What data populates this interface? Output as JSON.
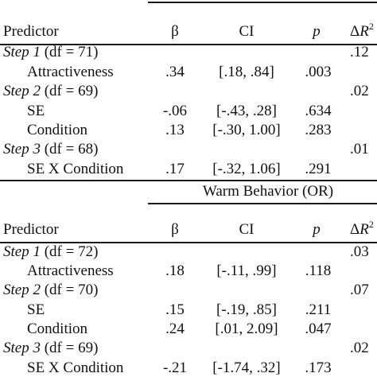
{
  "headers": {
    "predictor": "Predictor",
    "beta": "β",
    "ci": "CI",
    "p": "p",
    "delta": "Δ",
    "r": "R",
    "sup": "2"
  },
  "panel2_title": "Warm Behavior  (OR)",
  "panel1": {
    "step1": {
      "prefix": "Step 1",
      "df": " (df = 71)",
      "dr2": ".12"
    },
    "step1_rows": [
      {
        "label": "Attractiveness",
        "beta": ".34",
        "ci": "[.18, .84]",
        "p": ".003"
      }
    ],
    "step2": {
      "prefix": "Step 2",
      "df": " (df = 69)",
      "dr2": ".02"
    },
    "step2_rows": [
      {
        "label": "SE",
        "beta": "-.06",
        "ci": "[-.43, .28]",
        "p": ".634"
      },
      {
        "label": "Condition",
        "beta": ".13",
        "ci": "[-.30, 1.00]",
        "p": ".283"
      }
    ],
    "step3": {
      "prefix": "Step 3",
      "df": " (df = 68)",
      "dr2": ".01"
    },
    "step3_rows": [
      {
        "label": "SE X Condition",
        "beta": ".17",
        "ci": "[-.32, 1.06]",
        "p": ".291"
      }
    ]
  },
  "panel2": {
    "step1": {
      "prefix": "Step 1",
      "df": " (df = 72)",
      "dr2": ".03"
    },
    "step1_rows": [
      {
        "label": "Attractiveness",
        "beta": ".18",
        "ci": "[-.11, .99]",
        "p": ".118"
      }
    ],
    "step2": {
      "prefix": "Step 2",
      "df": " (df = 70)",
      "dr2": ".07"
    },
    "step2_rows": [
      {
        "label": "SE",
        "beta": ".15",
        "ci": "[-.19, .85]",
        "p": ".211"
      },
      {
        "label": "Condition",
        "beta": ".24",
        "ci": "[.01, 2.09]",
        "p": ".047"
      }
    ],
    "step3": {
      "prefix": "Step 3",
      "df": " (df = 69)",
      "dr2": ".02"
    },
    "step3_rows": [
      {
        "label": "SE X Condition",
        "beta": "-.21",
        "ci": "[-1.74, .32]",
        "p": ".173"
      }
    ]
  }
}
